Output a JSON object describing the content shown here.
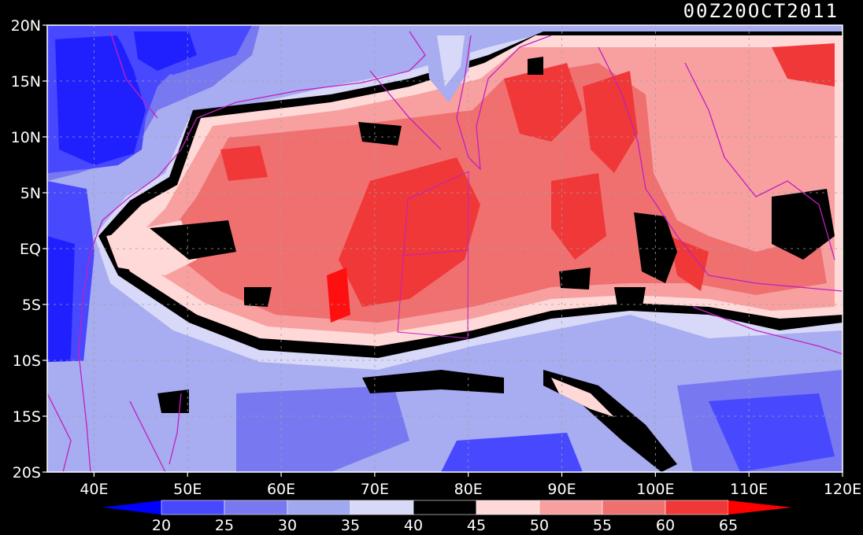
{
  "timestamp": "00Z20OCT2011",
  "lat_labels": [
    "20N",
    "15N",
    "10N",
    "5N",
    "EQ",
    "5S",
    "10S",
    "15S",
    "20S"
  ],
  "lat_values": [
    20,
    15,
    10,
    5,
    0,
    -5,
    -10,
    -15,
    -20
  ],
  "lon_labels": [
    "40E",
    "50E",
    "60E",
    "70E",
    "80E",
    "90E",
    "100E",
    "110E",
    "120E"
  ],
  "lon_values": [
    40,
    50,
    60,
    70,
    80,
    90,
    100,
    110,
    120
  ],
  "map_extent": {
    "lon_min": 35,
    "lon_max": 120,
    "lat_min": -20,
    "lat_max": 20
  },
  "colorbar": {
    "labels": [
      "20",
      "25",
      "30",
      "35",
      "40",
      "45",
      "50",
      "55",
      "60",
      "65"
    ],
    "colors": [
      "#2020ff",
      "#4848ff",
      "#7878f0",
      "#a0a8f0",
      "#d8d8f8",
      "#000000",
      "#ffd8d8",
      "#f8a0a0",
      "#f07070",
      "#f03838",
      "#ff1010"
    ],
    "under_color": "#0000ff",
    "over_color": "#ff0000"
  },
  "colors": {
    "coast": "#c020c0",
    "grid": "#a0a0a0",
    "background": "#000000"
  }
}
